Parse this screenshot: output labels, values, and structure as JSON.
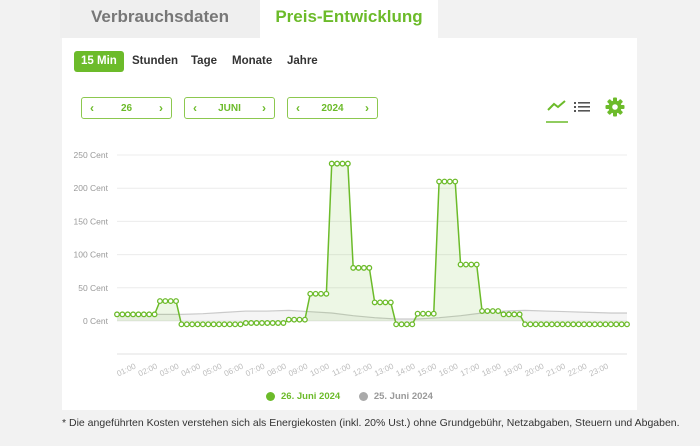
{
  "tabs": [
    {
      "label": "Verbrauchsdaten",
      "active": false
    },
    {
      "label": "Preis-Entwicklung",
      "active": true
    }
  ],
  "periods": [
    {
      "label": "15 Min",
      "active": true
    },
    {
      "label": "Stunden"
    },
    {
      "label": "Tage"
    },
    {
      "label": "Monate"
    },
    {
      "label": "Jahre"
    }
  ],
  "pickers": {
    "day": "26",
    "month": "JUNI",
    "year": "2024"
  },
  "icons": {
    "prev": "chevron-left-icon",
    "next": "chevron-right-icon",
    "line_view": "line-chart-icon",
    "list_view": "list-icon",
    "settings": "gear-icon"
  },
  "colors": {
    "accent": "#6cbb2a",
    "compare": "#aaaaaa"
  },
  "chart_data": {
    "type": "line",
    "y_unit": "Cent",
    "ylim": [
      0,
      250
    ],
    "yticks": [
      0,
      50,
      100,
      150,
      200,
      250
    ],
    "ytick_labels": [
      "0 Cent",
      "50 Cent",
      "100 Cent",
      "150 Cent",
      "200 Cent",
      "250 Cent"
    ],
    "xtick_labels": [
      "01:00",
      "02:00",
      "03:00",
      "04:00",
      "05:00",
      "06:00",
      "07:00",
      "08:00",
      "09:00",
      "10:00",
      "11:00",
      "12:00",
      "13:00",
      "14:00",
      "15:00",
      "16:00",
      "17:00",
      "18:00",
      "19:00",
      "20:00",
      "21:00",
      "22:00",
      "23:00"
    ],
    "grid": true,
    "legend_position": "bottom",
    "series": [
      {
        "name": "26. Juni 2024",
        "color": "#6cbb2a",
        "interval": "15 Min",
        "values": [
          10,
          10,
          10,
          10,
          10,
          10,
          10,
          10,
          30,
          30,
          30,
          30,
          -5,
          -5,
          -5,
          -5,
          -5,
          -5,
          -5,
          -5,
          -5,
          -5,
          -5,
          -5,
          -3,
          -3,
          -3,
          -3,
          -3,
          -3,
          -3,
          -3,
          2,
          2,
          2,
          2,
          41,
          41,
          41,
          41,
          237,
          237,
          237,
          237,
          80,
          80,
          80,
          80,
          28,
          28,
          28,
          28,
          -5,
          -5,
          -5,
          -5,
          11,
          11,
          11,
          11,
          210,
          210,
          210,
          210,
          85,
          85,
          85,
          85,
          15,
          15,
          15,
          15,
          10,
          10,
          10,
          10,
          -5,
          -5,
          -5,
          -5,
          -5,
          -5,
          -5,
          -5,
          -5,
          -5,
          -5,
          -5,
          -5,
          -5,
          -5,
          -5,
          -5,
          -5,
          -5,
          -5
        ]
      },
      {
        "name": "25. Juni 2024",
        "color": "#aaaaaa",
        "interval": "Stunden",
        "values": [
          10,
          10,
          10,
          10,
          11,
          13,
          15,
          15,
          16,
          14,
          12,
          8,
          5,
          3,
          3,
          5,
          8,
          12,
          15,
          16,
          15,
          14,
          13,
          12
        ]
      }
    ]
  },
  "footnote": "* Die angeführten Kosten verstehen sich als Energiekosten (inkl. 20% Ust.) ohne Grundgebühr, Netzabgaben, Steuern und Abgaben."
}
